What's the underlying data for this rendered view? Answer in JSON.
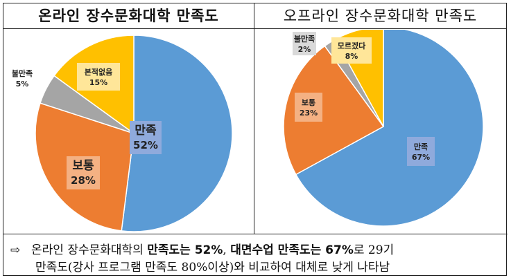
{
  "colors": {
    "satisfied": "#5b9bd5",
    "normal": "#ed7d31",
    "dissatisfied": "#a5a5a5",
    "unknown": "#ffc000"
  },
  "chart_data": [
    {
      "type": "pie",
      "title": "온라인 장수문화대학 만족도",
      "slices": [
        {
          "label": "만족",
          "value": 52,
          "value_label": "52%"
        },
        {
          "label": "보통",
          "value": 28,
          "value_label": "28%"
        },
        {
          "label": "불만족",
          "value": 5,
          "value_label": "5%"
        },
        {
          "label": "본적없음",
          "value": 15,
          "value_label": "15%"
        }
      ]
    },
    {
      "type": "pie",
      "title": "오프라인 장수문화대학 만족도",
      "slices": [
        {
          "label": "만족",
          "value": 67,
          "value_label": "67%"
        },
        {
          "label": "보통",
          "value": 23,
          "value_label": "23%"
        },
        {
          "label": "불만족",
          "value": 2,
          "value_label": "2%"
        },
        {
          "label": "모르겠다",
          "value": 8,
          "value_label": "8%"
        }
      ]
    }
  ],
  "caption": {
    "arrow": "⇨",
    "line1_a": "온라인 장수문화대학의 ",
    "line1_b": "만족도는 52%",
    "line1_c": ", ",
    "line1_d": "대면수업 만족도는 67%",
    "line1_e": "로 29기",
    "line2": "만족도(강사 프로그램 만족도 80%이상)와 비교하여 대체로 낮게 나타남"
  }
}
